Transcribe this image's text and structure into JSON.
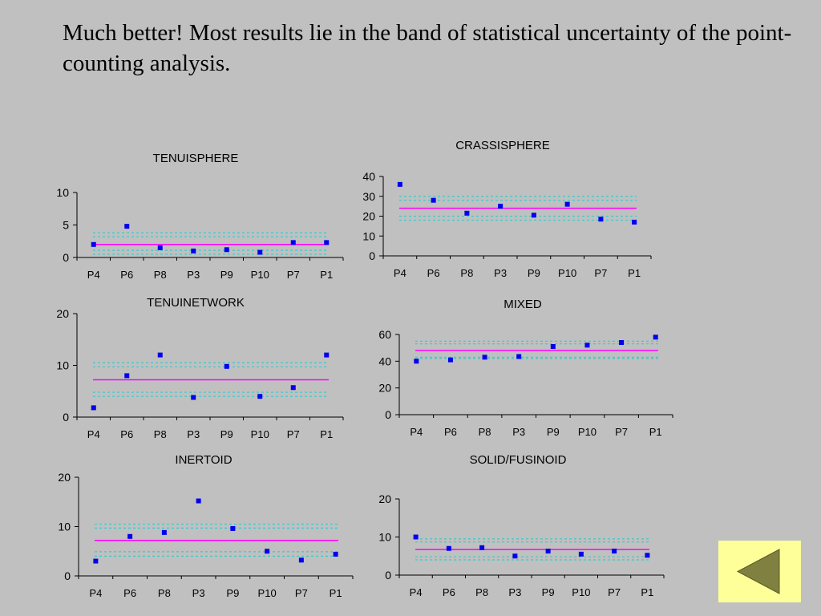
{
  "slide": {
    "title": "Much better! Most results lie in the band of statistical uncertainty of the point-counting analysis."
  },
  "colors": {
    "point": "#0000ee",
    "mean_line": "#ff00ff",
    "uncertainty_band": "#33cccc",
    "background": "#c0c0c0",
    "nav_button": "#ffff99",
    "nav_arrow": "#808040"
  },
  "nav": {
    "back_icon": "back-arrow-icon"
  },
  "chart_data": [
    {
      "type": "scatter",
      "title": "TENUISPHERE",
      "categories": [
        "P4",
        "P6",
        "P8",
        "P3",
        "P9",
        "P10",
        "P7",
        "P1"
      ],
      "values": [
        2.0,
        4.8,
        1.5,
        1.0,
        1.2,
        0.8,
        2.3,
        2.3
      ],
      "mean": 2.0,
      "band_inner": [
        1.1,
        3.2
      ],
      "band_outer": [
        0.5,
        3.8
      ],
      "ylim": [
        0,
        10
      ],
      "yticks": [
        0,
        5,
        10
      ],
      "grid": false,
      "legend": "none"
    },
    {
      "type": "scatter",
      "title": "CRASSISPHERE",
      "categories": [
        "P4",
        "P6",
        "P8",
        "P3",
        "P9",
        "P10",
        "P7",
        "P1"
      ],
      "values": [
        36,
        28,
        21.5,
        25,
        20.5,
        26,
        18.5,
        17
      ],
      "mean": 24,
      "band_inner": [
        20,
        28
      ],
      "band_outer": [
        18,
        30
      ],
      "ylim": [
        0,
        40
      ],
      "yticks": [
        0,
        10,
        20,
        30,
        40
      ],
      "grid": false,
      "legend": "none"
    },
    {
      "type": "scatter",
      "title": "TENUINETWORK",
      "categories": [
        "P4",
        "P6",
        "P8",
        "P3",
        "P9",
        "P10",
        "P7",
        "P1"
      ],
      "values": [
        1.8,
        8,
        12,
        3.8,
        9.8,
        4,
        5.7,
        12
      ],
      "mean": 7.2,
      "band_inner": [
        4.8,
        9.7
      ],
      "band_outer": [
        4,
        10.5
      ],
      "ylim": [
        0,
        20
      ],
      "yticks": [
        0,
        10,
        20
      ],
      "grid": false,
      "legend": "none"
    },
    {
      "type": "scatter",
      "title": "MIXED",
      "categories": [
        "P4",
        "P6",
        "P8",
        "P3",
        "P9",
        "P10",
        "P7",
        "P1"
      ],
      "values": [
        40,
        41,
        43,
        43.5,
        51,
        52,
        54,
        58
      ],
      "mean": 48,
      "band_inner": [
        43,
        53
      ],
      "band_outer": [
        42,
        55
      ],
      "ylim": [
        0,
        60
      ],
      "yticks": [
        0,
        20,
        40,
        60
      ],
      "grid": false,
      "legend": "none"
    },
    {
      "type": "scatter",
      "title": "INERTOID",
      "categories": [
        "P4",
        "P6",
        "P8",
        "P3",
        "P9",
        "P10",
        "P7",
        "P1"
      ],
      "values": [
        3,
        8,
        8.8,
        15.2,
        9.6,
        5,
        3.2,
        4.4
      ],
      "mean": 7.2,
      "band_inner": [
        4.9,
        9.7
      ],
      "band_outer": [
        4,
        10.5
      ],
      "ylim": [
        0,
        20
      ],
      "yticks": [
        0,
        10,
        20
      ],
      "grid": false,
      "legend": "none"
    },
    {
      "type": "scatter",
      "title": "SOLID/FUSINOID",
      "categories": [
        "P4",
        "P6",
        "P8",
        "P3",
        "P9",
        "P10",
        "P7",
        "P1"
      ],
      "values": [
        10,
        7,
        7.2,
        5,
        6.3,
        5.5,
        6.3,
        5.2
      ],
      "mean": 6.7,
      "band_inner": [
        4.8,
        8.7
      ],
      "band_outer": [
        4,
        9.5
      ],
      "ylim": [
        0,
        20
      ],
      "yticks": [
        0,
        10,
        20
      ],
      "grid": false,
      "legend": "none"
    }
  ]
}
